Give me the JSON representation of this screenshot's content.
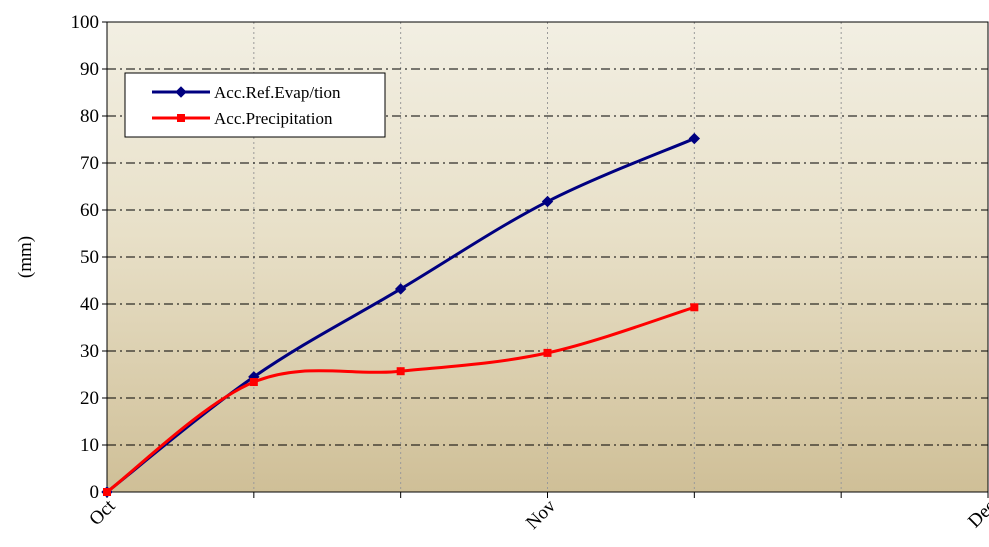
{
  "chart_data": {
    "type": "line",
    "title": "",
    "xlabel": "",
    "ylabel": "(mm)",
    "ylim": [
      0,
      100
    ],
    "yticks": [
      0,
      10,
      20,
      30,
      40,
      50,
      60,
      70,
      80,
      90,
      100
    ],
    "xlim": [
      0,
      6
    ],
    "x": [
      0,
      1,
      2,
      3,
      4
    ],
    "xtick_labels": [
      {
        "x": 0,
        "label": "Oct"
      },
      {
        "x": 3,
        "label": "Nov"
      },
      {
        "x": 6,
        "label": "Dec"
      }
    ],
    "grid": {
      "horizontal": "dash-dot",
      "vertical": "dotted"
    },
    "legend_position": "top-left",
    "series": [
      {
        "name": "Acc.Ref.Evap/tion",
        "color": "#000080",
        "marker": "diamond",
        "values": [
          0,
          24.5,
          43.2,
          61.8,
          75.2
        ]
      },
      {
        "name": "Acc.Precipitation",
        "color": "#ff0000",
        "marker": "square",
        "values": [
          0,
          23.4,
          25.7,
          29.6,
          39.3
        ]
      }
    ]
  }
}
